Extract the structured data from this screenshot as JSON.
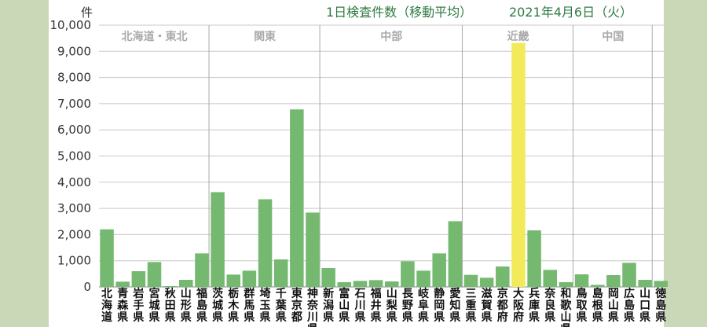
{
  "chart_data": {
    "type": "bar",
    "title": "1日検査件数（移動平均）",
    "date": "2021年4月6日（火）",
    "ylabel": "件",
    "ylim": [
      0,
      10000
    ],
    "yticks": [
      "0",
      "1,000",
      "2,000",
      "3,000",
      "4,000",
      "5,000",
      "6,000",
      "7,000",
      "8,000",
      "9,000",
      "10,000"
    ],
    "grid": true,
    "colors": {
      "bar": "#74b96f",
      "highlight": "#f2ea5a",
      "grid": "#c8c8c8"
    },
    "highlight": "大阪府",
    "regions": [
      {
        "name": "北海道・東北",
        "start": 0,
        "end": 7
      },
      {
        "name": "関東",
        "start": 7,
        "end": 14
      },
      {
        "name": "中部",
        "start": 14,
        "end": 23
      },
      {
        "name": "近畿",
        "start": 23,
        "end": 30
      },
      {
        "name": "中国",
        "start": 30,
        "end": 35
      }
    ],
    "categories": [
      "北海道",
      "青森県",
      "岩手県",
      "宮城県",
      "秋田県",
      "山形県",
      "福島県",
      "茨城県",
      "栃木県",
      "群馬県",
      "埼玉県",
      "千葉県",
      "東京都",
      "神奈川県",
      "新潟県",
      "富山県",
      "石川県",
      "福井県",
      "山梨県",
      "長野県",
      "岐阜県",
      "静岡県",
      "愛知県",
      "三重県",
      "滋賀県",
      "京都府",
      "大阪府",
      "兵庫県",
      "奈良県",
      "和歌山県",
      "鳥取県",
      "島根県",
      "岡山県",
      "広島県",
      "山口県",
      "徳島県"
    ],
    "values": [
      2200,
      200,
      600,
      950,
      30,
      270,
      1280,
      3620,
      470,
      620,
      3350,
      1050,
      6780,
      2840,
      720,
      180,
      230,
      260,
      210,
      980,
      620,
      1280,
      2510,
      460,
      350,
      780,
      9320,
      2160,
      650,
      180,
      480,
      80,
      450,
      920,
      270,
      230
    ]
  }
}
